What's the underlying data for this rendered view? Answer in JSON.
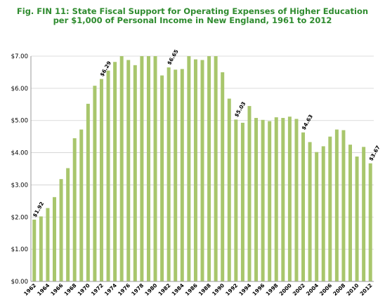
{
  "chart_data": {
    "type": "bar",
    "title_line1": "Fig. FIN 11: State Fiscal Support for Operating Expenses of Higher Education",
    "title_line2": "per $1,000 of Personal Income in New England, 1961 to 2012",
    "xlabel": "",
    "ylabel": "",
    "ylim": [
      0,
      7
    ],
    "y_ticks": [
      "$0.00",
      "$1.00",
      "$2.00",
      "$3.00",
      "$4.00",
      "$5.00",
      "$6.00",
      "$7.00"
    ],
    "grid": true,
    "bar_color": "#a8c66c",
    "title_color": "#2e8b2e",
    "categories": [
      1962,
      1963,
      1964,
      1965,
      1966,
      1967,
      1968,
      1969,
      1970,
      1971,
      1972,
      1973,
      1974,
      1975,
      1976,
      1977,
      1978,
      1979,
      1980,
      1981,
      1982,
      1983,
      1984,
      1985,
      1986,
      1987,
      1988,
      1989,
      1990,
      1991,
      1992,
      1993,
      1994,
      1995,
      1996,
      1997,
      1998,
      1999,
      2000,
      2001,
      2002,
      2003,
      2004,
      2005,
      2006,
      2007,
      2008,
      2009,
      2010,
      2011,
      2012
    ],
    "x_tick_labels": [
      "1962",
      "1964",
      "1966",
      "1968",
      "1970",
      "1972",
      "1974",
      "1976",
      "1978",
      "1980",
      "1982",
      "1984",
      "1986",
      "1988",
      "1990",
      "1992",
      "1994",
      "1996",
      "1998",
      "2000",
      "2002",
      "2004",
      "2006",
      "2008",
      "2010",
      "2012"
    ],
    "values": [
      1.92,
      2.02,
      2.28,
      2.62,
      3.18,
      3.52,
      4.45,
      4.72,
      5.52,
      6.08,
      6.29,
      6.55,
      6.82,
      7.0,
      6.88,
      6.72,
      7.0,
      7.0,
      7.0,
      6.4,
      6.65,
      6.58,
      6.6,
      7.0,
      6.9,
      6.88,
      7.0,
      7.0,
      6.5,
      5.68,
      5.03,
      4.93,
      5.45,
      5.08,
      5.02,
      4.98,
      5.1,
      5.08,
      5.12,
      5.05,
      4.63,
      4.33,
      4.02,
      4.2,
      4.5,
      4.72,
      4.7,
      4.25,
      3.88,
      4.18,
      3.67
    ],
    "data_labels": [
      {
        "year": 1962,
        "text": "$1.92"
      },
      {
        "year": 1972,
        "text": "$6.29"
      },
      {
        "year": 1982,
        "text": "$6.65"
      },
      {
        "year": 1992,
        "text": "$5.03"
      },
      {
        "year": 2002,
        "text": "$4.63"
      },
      {
        "year": 2012,
        "text": "$3.67"
      }
    ]
  }
}
